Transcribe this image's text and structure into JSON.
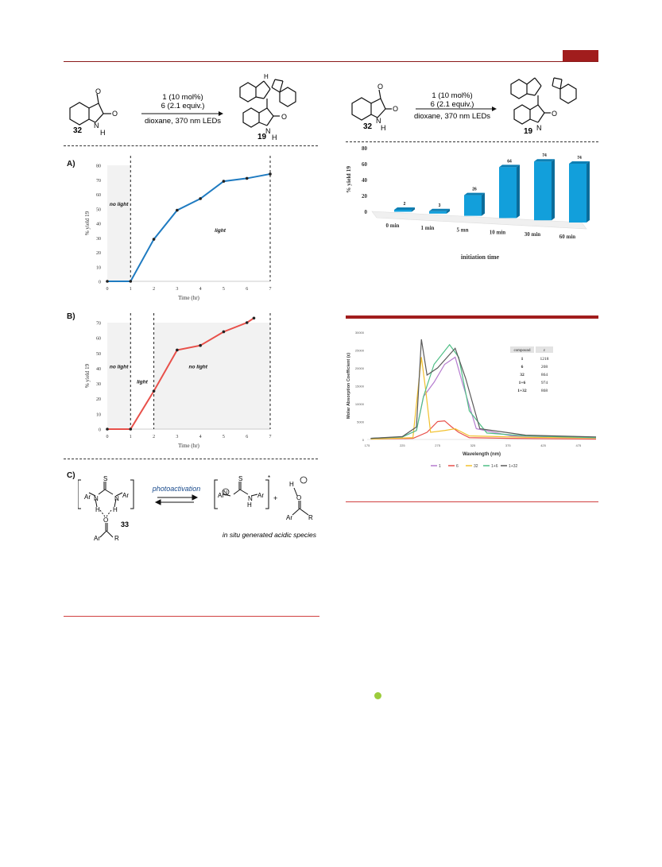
{
  "colors": {
    "header_rule": "#8b1a1a",
    "tab": "#a11d1d",
    "chart_a": "#1f7bc1",
    "chart_b": "#e8504a",
    "bar": "#129fdb"
  },
  "scheme_left": {
    "reagent_line1": "1 (10 mol%)",
    "reagent_line2": "6 (2.1 equiv.)",
    "conditions": "dioxane, 370 nm LEDs",
    "sm_label": "32",
    "product_label": "19",
    "o_label": "O",
    "nh_label": "N",
    "h_label": "H"
  },
  "scheme_right": {
    "reagent_line1": "1 (10 mol%)",
    "reagent_line2": "6 (2.1 equiv.)",
    "conditions": "dioxane, 370 nm LEDs",
    "sm_label": "32",
    "product_label": "19"
  },
  "panel_labels": {
    "a": "A)",
    "b": "B)",
    "c": "C)"
  },
  "chart_a_text": {
    "no_light": "no light",
    "light": "light"
  },
  "chart_b_text": {
    "no_light_1": "no light",
    "light": "light",
    "no_light_2": "no light"
  },
  "panel_c": {
    "photo": "photoactivation",
    "compound": "33",
    "caption": "in situ generated acidic species",
    "ar": "Ar",
    "s": "S",
    "n": "N",
    "h": "H",
    "o": "O",
    "r": "R",
    "plus": "+",
    "star": "*"
  },
  "spectrum_table": {
    "header": [
      "compound",
      "ε"
    ],
    "rows": [
      [
        "1",
        "1218"
      ],
      [
        "6",
        "208"
      ],
      [
        "32",
        "864"
      ],
      [
        "1+6",
        "974"
      ],
      [
        "1+32",
        "868"
      ]
    ]
  },
  "chart_data": [
    {
      "type": "line",
      "title": "",
      "xlabel": "Time (hr)",
      "ylabel": "% yield 19",
      "x": [
        0,
        1,
        2,
        3,
        4,
        5,
        6,
        7
      ],
      "values": [
        0,
        0,
        29,
        49,
        57,
        69,
        71,
        74
      ],
      "xlim": [
        0,
        7
      ],
      "ylim": [
        0,
        80
      ],
      "xticks": [
        "0",
        "1",
        "2",
        "3",
        "4",
        "5",
        "6",
        "7"
      ],
      "yticks": [
        "0",
        "10",
        "20",
        "30",
        "40",
        "50",
        "60",
        "70",
        "80"
      ]
    },
    {
      "type": "line",
      "title": "",
      "xlabel": "Time (hr)",
      "ylabel": "% yield 19",
      "x": [
        0,
        1,
        2,
        3,
        4,
        5,
        6,
        6.3
      ],
      "values": [
        0,
        0,
        25,
        52,
        55,
        64,
        70,
        73
      ],
      "xlim": [
        0,
        7
      ],
      "ylim": [
        0,
        70
      ],
      "xticks": [
        "0",
        "1",
        "2",
        "3",
        "4",
        "5",
        "6",
        "7"
      ],
      "yticks": [
        "0",
        "10",
        "20",
        "30",
        "40",
        "50",
        "60",
        "70"
      ]
    },
    {
      "type": "bar",
      "title": "",
      "xlabel": "initiation time",
      "ylabel": "% yield 19",
      "categories": [
        "0 min",
        "1 min",
        "5 mn",
        "10 min",
        "30 min",
        "60 min"
      ],
      "values": [
        2,
        3,
        26,
        64,
        74,
        74
      ],
      "ylim": [
        0,
        80
      ],
      "yticks": [
        "0",
        "20",
        "40",
        "60",
        "80"
      ]
    },
    {
      "type": "line",
      "title": "",
      "xlabel": "Wavelength (nm)",
      "ylabel": "Molar Absorption Coefficient (ε)",
      "xticks": [
        "175",
        "225",
        "275",
        "325",
        "375",
        "425",
        "475"
      ],
      "yticks": [
        "0",
        "5000",
        "10000",
        "15000",
        "20000",
        "25000",
        "30000"
      ],
      "series": [
        {
          "name": "1",
          "color": "#b57bcf"
        },
        {
          "name": "6",
          "color": "#e8504a"
        },
        {
          "name": "32",
          "color": "#f2c12e"
        },
        {
          "name": "1+6",
          "color": "#4fbf86"
        },
        {
          "name": "1+32",
          "color": "#5a5a5a"
        }
      ]
    }
  ]
}
